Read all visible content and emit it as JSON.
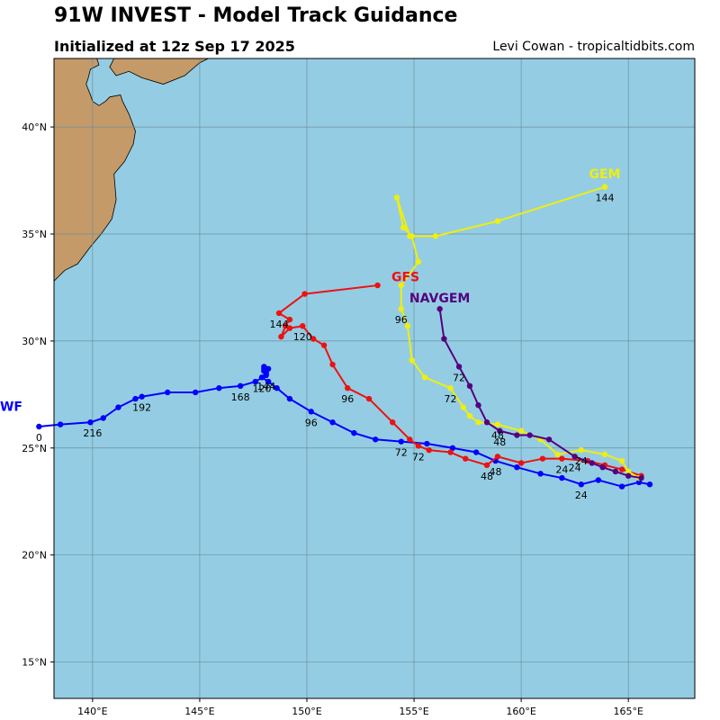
{
  "header": {
    "title": "91W INVEST - Model Track Guidance",
    "subtitle": "Initialized at 12z Sep 17 2025",
    "credit": "Levi Cowan - tropicaltidbits.com"
  },
  "colors": {
    "ocean": "#94cde3",
    "land": "#c49a69",
    "grid": "#6f8f9c",
    "ECMWF": "#0000ff",
    "GFS": "#ee1111",
    "GEM": "#eeee11",
    "NAVGEM": "#55007f"
  },
  "chart_data": {
    "type": "scatter",
    "xlabel": "",
    "ylabel": "",
    "xlim": [
      138.2,
      168.1
    ],
    "ylim": [
      13.3,
      43.2
    ],
    "grid": true,
    "x_ticks": [
      140,
      145,
      150,
      155,
      160,
      165
    ],
    "x_tick_labels": [
      "140°E",
      "145°E",
      "150°E",
      "155°E",
      "160°E",
      "165°E"
    ],
    "y_ticks": [
      15,
      20,
      25,
      30,
      35,
      40
    ],
    "y_tick_labels": [
      "15°N",
      "20°N",
      "25°N",
      "30°N",
      "35°N",
      "40°N"
    ],
    "series": [
      {
        "name": "ECMWF",
        "color_key": "ECMWF",
        "name_shown": "WF",
        "points": [
          [
            166.0,
            23.3
          ],
          [
            165.5,
            23.4
          ],
          [
            164.7,
            23.2
          ],
          [
            163.6,
            23.5
          ],
          [
            162.8,
            23.3
          ],
          [
            161.9,
            23.6
          ],
          [
            160.9,
            23.8
          ],
          [
            159.8,
            24.1
          ],
          [
            158.8,
            24.4
          ],
          [
            157.9,
            24.8
          ],
          [
            156.8,
            25.0
          ],
          [
            155.6,
            25.2
          ],
          [
            154.4,
            25.3
          ],
          [
            153.2,
            25.4
          ],
          [
            152.2,
            25.7
          ],
          [
            151.2,
            26.2
          ],
          [
            150.2,
            26.7
          ],
          [
            149.2,
            27.3
          ],
          [
            148.6,
            27.8
          ],
          [
            148.2,
            28.1
          ],
          [
            147.9,
            28.3
          ],
          [
            148.1,
            28.5
          ],
          [
            148.0,
            28.7
          ],
          [
            148.2,
            28.7
          ],
          [
            148.0,
            28.8
          ],
          [
            148.0,
            28.6
          ],
          [
            148.1,
            28.4
          ],
          [
            147.6,
            28.1
          ],
          [
            146.9,
            27.9
          ],
          [
            145.9,
            27.8
          ],
          [
            144.8,
            27.6
          ],
          [
            143.5,
            27.6
          ],
          [
            142.3,
            27.4
          ],
          [
            142.0,
            27.3
          ],
          [
            141.2,
            26.9
          ],
          [
            140.5,
            26.4
          ],
          [
            139.9,
            26.2
          ],
          [
            138.5,
            26.1
          ],
          [
            137.5,
            26.0
          ]
        ],
        "hour_labels": [
          {
            "text": "24",
            "x": 162.8,
            "y": 23.3
          },
          {
            "text": "48",
            "x": 158.8,
            "y": 24.4
          },
          {
            "text": "72",
            "x": 154.4,
            "y": 25.3
          },
          {
            "text": "96",
            "x": 150.2,
            "y": 26.7
          },
          {
            "text": "120",
            "x": 147.9,
            "y": 28.3
          },
          {
            "text": "144",
            "x": 148.1,
            "y": 28.4
          },
          {
            "text": "168",
            "x": 146.9,
            "y": 27.9
          },
          {
            "text": "192",
            "x": 142.3,
            "y": 27.4
          },
          {
            "text": "216",
            "x": 140.0,
            "y": 26.2
          },
          {
            "text": "0",
            "x": 137.5,
            "y": 26.0
          }
        ]
      },
      {
        "name": "GFS",
        "color_key": "GFS",
        "name_shown": "GFS",
        "points": [
          [
            165.6,
            23.7
          ],
          [
            164.7,
            24.0
          ],
          [
            163.9,
            24.2
          ],
          [
            163.1,
            24.4
          ],
          [
            161.9,
            24.5
          ],
          [
            161.0,
            24.5
          ],
          [
            160.0,
            24.3
          ],
          [
            158.9,
            24.6
          ],
          [
            158.4,
            24.2
          ],
          [
            157.4,
            24.5
          ],
          [
            156.7,
            24.8
          ],
          [
            155.7,
            24.9
          ],
          [
            155.2,
            25.1
          ],
          [
            154.8,
            25.4
          ],
          [
            154.0,
            26.2
          ],
          [
            152.9,
            27.3
          ],
          [
            151.9,
            27.8
          ],
          [
            151.2,
            28.9
          ],
          [
            150.8,
            29.8
          ],
          [
            150.3,
            30.1
          ],
          [
            149.8,
            30.7
          ],
          [
            149.2,
            30.6
          ],
          [
            148.8,
            30.2
          ],
          [
            149.0,
            30.7
          ],
          [
            149.2,
            31.0
          ],
          [
            148.7,
            31.3
          ],
          [
            149.9,
            32.2
          ],
          [
            153.3,
            32.6
          ]
        ],
        "hour_labels": [
          {
            "text": "24",
            "x": 161.9,
            "y": 24.5
          },
          {
            "text": "48",
            "x": 158.4,
            "y": 24.2
          },
          {
            "text": "72",
            "x": 155.2,
            "y": 25.1
          },
          {
            "text": "96",
            "x": 151.9,
            "y": 27.8
          },
          {
            "text": "120",
            "x": 149.8,
            "y": 30.7
          },
          {
            "text": "144",
            "x": 148.7,
            "y": 31.3
          }
        ],
        "label_pos": [
          154.6,
          32.8
        ]
      },
      {
        "name": "GEM",
        "color_key": "GEM",
        "name_shown": "GEM",
        "points": [
          [
            165.5,
            23.6
          ],
          [
            165.0,
            23.9
          ],
          [
            164.7,
            24.4
          ],
          [
            163.9,
            24.7
          ],
          [
            162.8,
            24.9
          ],
          [
            161.7,
            24.7
          ],
          [
            160.9,
            25.4
          ],
          [
            160.0,
            25.8
          ],
          [
            158.9,
            26.1
          ],
          [
            158.0,
            26.2
          ],
          [
            157.6,
            26.5
          ],
          [
            157.3,
            26.9
          ],
          [
            156.7,
            27.8
          ],
          [
            155.5,
            28.3
          ],
          [
            154.9,
            29.1
          ],
          [
            154.7,
            30.7
          ],
          [
            154.4,
            31.5
          ],
          [
            154.4,
            32.6
          ],
          [
            155.2,
            33.7
          ],
          [
            154.9,
            34.9
          ],
          [
            154.5,
            35.3
          ],
          [
            154.2,
            36.7
          ],
          [
            154.8,
            34.9
          ],
          [
            156.0,
            34.9
          ],
          [
            158.9,
            35.6
          ],
          [
            163.9,
            37.2
          ]
        ],
        "hour_labels": [
          {
            "text": "24",
            "x": 162.8,
            "y": 24.9
          },
          {
            "text": "48",
            "x": 158.9,
            "y": 26.1
          },
          {
            "text": "72",
            "x": 156.7,
            "y": 27.8
          },
          {
            "text": "96",
            "x": 154.4,
            "y": 31.5
          },
          {
            "text": "144",
            "x": 163.9,
            "y": 37.2
          }
        ],
        "label_pos": [
          163.9,
          37.6
        ]
      },
      {
        "name": "NAVGEM",
        "color_key": "NAVGEM",
        "name_shown": "NAVGEM",
        "points": [
          [
            165.6,
            23.6
          ],
          [
            165.0,
            23.7
          ],
          [
            164.4,
            23.9
          ],
          [
            163.8,
            24.1
          ],
          [
            163.3,
            24.3
          ],
          [
            162.5,
            24.6
          ],
          [
            161.3,
            25.4
          ],
          [
            160.4,
            25.6
          ],
          [
            159.8,
            25.6
          ],
          [
            159.0,
            25.8
          ],
          [
            158.4,
            26.2
          ],
          [
            158.0,
            27.0
          ],
          [
            157.6,
            27.9
          ],
          [
            157.1,
            28.8
          ],
          [
            156.4,
            30.1
          ],
          [
            156.2,
            31.5
          ]
        ],
        "hour_labels": [
          {
            "text": "24",
            "x": 162.5,
            "y": 24.6
          },
          {
            "text": "48",
            "x": 159.0,
            "y": 25.8
          },
          {
            "text": "72",
            "x": 157.1,
            "y": 28.8
          }
        ],
        "label_pos": [
          156.2,
          31.8
        ]
      }
    ]
  },
  "map": {
    "japan": [
      [
        138.2,
        43.2
      ],
      [
        138.2,
        32.8
      ],
      [
        138.7,
        33.3
      ],
      [
        139.3,
        33.6
      ],
      [
        139.9,
        34.4
      ],
      [
        140.4,
        35.0
      ],
      [
        140.9,
        35.7
      ],
      [
        141.1,
        36.6
      ],
      [
        141.0,
        37.8
      ],
      [
        141.5,
        38.4
      ],
      [
        141.9,
        39.2
      ],
      [
        142.0,
        39.8
      ],
      [
        141.7,
        40.6
      ],
      [
        141.4,
        41.2
      ],
      [
        141.3,
        41.5
      ],
      [
        140.8,
        41.4
      ],
      [
        140.6,
        41.2
      ],
      [
        140.3,
        41.0
      ],
      [
        140.0,
        41.2
      ],
      [
        139.9,
        41.5
      ],
      [
        139.7,
        42.0
      ],
      [
        139.8,
        42.3
      ],
      [
        139.9,
        42.7
      ],
      [
        140.3,
        42.9
      ],
      [
        140.2,
        43.2
      ]
    ],
    "hokkaido": [
      [
        141.0,
        43.2
      ],
      [
        140.8,
        42.8
      ],
      [
        141.1,
        42.4
      ],
      [
        141.7,
        42.6
      ],
      [
        142.3,
        42.3
      ],
      [
        143.3,
        42.0
      ],
      [
        144.3,
        42.4
      ],
      [
        145.0,
        43.0
      ],
      [
        145.4,
        43.2
      ]
    ]
  }
}
